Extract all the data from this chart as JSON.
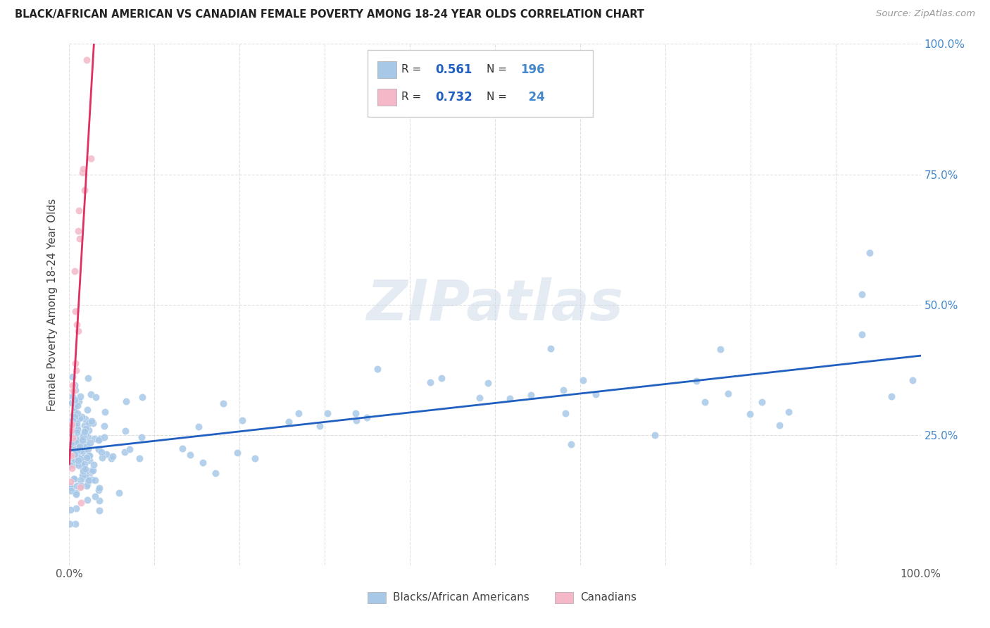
{
  "title": "BLACK/AFRICAN AMERICAN VS CANADIAN FEMALE POVERTY AMONG 18-24 YEAR OLDS CORRELATION CHART",
  "source": "Source: ZipAtlas.com",
  "ylabel": "Female Poverty Among 18-24 Year Olds",
  "watermark": "ZIPatlas",
  "blue_R": 0.561,
  "blue_N": 196,
  "pink_R": 0.732,
  "pink_N": 24,
  "blue_color": "#a8c8e8",
  "pink_color": "#f4b8c8",
  "blue_line_color": "#2060c0",
  "pink_line_color": "#e03060",
  "tick_color": "#4488cc",
  "grid_color": "#e0e0e0",
  "xlim": [
    0.0,
    1.0
  ],
  "ylim": [
    0.0,
    1.0
  ]
}
